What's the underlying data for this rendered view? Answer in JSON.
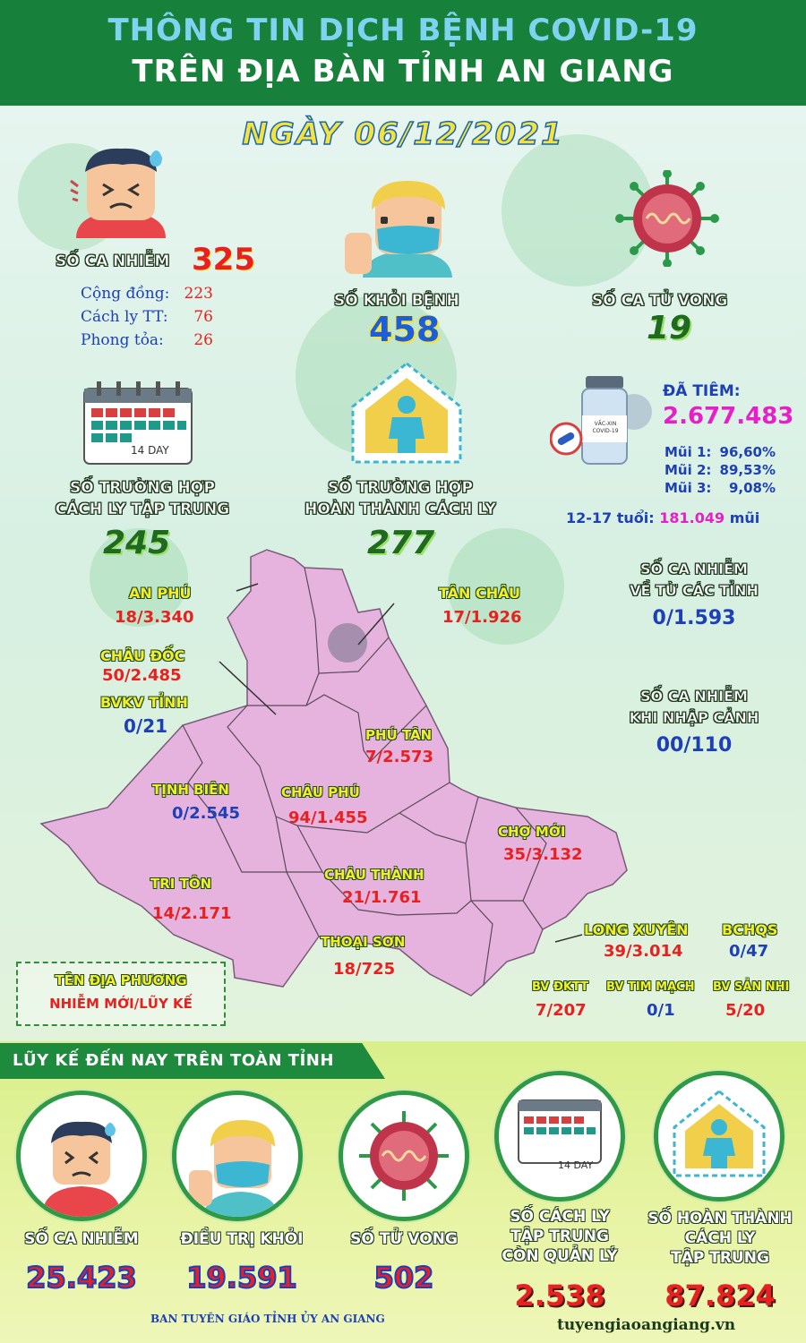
{
  "header": {
    "title_line1": "THÔNG TIN DỊCH BỆNH COVID-19",
    "title_line2": "TRÊN ĐỊA BÀN TỈNH AN GIANG"
  },
  "date": "NGÀY 06/12/2021",
  "infections": {
    "label": "SỐ CA NHIỄM",
    "value": "325",
    "rows": [
      {
        "label": "Cộng đồng:",
        "value": "223"
      },
      {
        "label": "Cách ly TT:",
        "value": "76"
      },
      {
        "label": "Phong tỏa:",
        "value": "26"
      }
    ]
  },
  "recovered": {
    "label": "SỐ KHỎI BỆNH",
    "value": "458"
  },
  "deaths": {
    "label": "SỐ CA TỬ VONG",
    "value": "19"
  },
  "quarantine_central": {
    "label_line1": "SỐ TRƯỜNG HỢP",
    "label_line2": "CÁCH LY TẬP TRUNG",
    "value": "245",
    "calendar_text": "14 DAY"
  },
  "quarantine_completed": {
    "label_line1": "SỐ TRƯỜNG HỢP",
    "label_line2": "HOÀN THÀNH CÁCH LY",
    "value": "277"
  },
  "vaccination": {
    "label": "ĐÃ TIÊM:",
    "value": "2.677.483",
    "vial_text": "VẮC-XIN COVID-19",
    "doses": [
      {
        "label": "Mũi 1:",
        "value": "96,60%"
      },
      {
        "label": "Mũi 2:",
        "value": "89,53%"
      },
      {
        "label": "Mũi 3:",
        "value": "9,08%"
      }
    ],
    "youth_label": "12-17 tuổi:",
    "youth_value": "181.049",
    "youth_unit": "mũi"
  },
  "side_stats": [
    {
      "line1": "SỐ CA NHIỄM",
      "line2": "VỀ TỪ CÁC TỈNH",
      "value": "0/1.593"
    },
    {
      "line1": "SỐ CA NHIỄM",
      "line2": "KHI NHẬP CẢNH",
      "value": "00/110"
    }
  ],
  "districts": [
    {
      "name": "AN PHÚ",
      "value": "18/3.340"
    },
    {
      "name": "TÂN CHÂU",
      "value": "17/1.926"
    },
    {
      "name": "CHÂU ĐỐC",
      "value": "50/2.485"
    },
    {
      "name": "BVKV TỈNH",
      "value": "0/21"
    },
    {
      "name": "PHÚ TÂN",
      "value": "7/2.573"
    },
    {
      "name": "TỊNH BIÊN",
      "value": "0/2.545"
    },
    {
      "name": "CHÂU PHÚ",
      "value": "94/1.455"
    },
    {
      "name": "CHỢ MỚI",
      "value": "35/3.132"
    },
    {
      "name": "TRI TÔN",
      "value": "14/2.171"
    },
    {
      "name": "CHÂU THÀNH",
      "value": "21/1.761"
    },
    {
      "name": "THOẠI SƠN",
      "value": "18/725"
    },
    {
      "name": "LONG XUYÊN",
      "value": "39/3.014"
    },
    {
      "name": "BCHQS",
      "value": "0/47"
    },
    {
      "name": "BV ĐKTT",
      "value": "7/207"
    },
    {
      "name": "BV TIM MẠCH",
      "value": "0/1"
    },
    {
      "name": "BV SẢN NHI",
      "value": "5/20"
    }
  ],
  "legend": {
    "line1": "TÊN ĐỊA PHƯƠNG",
    "line2": "NHIỄM MỚI/LŨY KẾ"
  },
  "cumulative": {
    "title": "LŨY KẾ ĐẾN NAY TRÊN TOÀN TỈNH",
    "items": [
      {
        "label": "SỐ CA NHIỄM",
        "value": "25.423"
      },
      {
        "label": "ĐIỀU TRỊ KHỎI",
        "value": "19.591"
      },
      {
        "label": "SỐ TỬ VONG",
        "value": "502"
      },
      {
        "label_line1": "SỐ CÁCH LY",
        "label_line2": "TẬP TRUNG",
        "label_line3": "CÒN QUẢN LÝ",
        "value": "2.538"
      },
      {
        "label_line1": "SỐ HOÀN THÀNH",
        "label_line2": "CÁCH LY",
        "label_line3": "TẬP TRUNG",
        "value": "87.824"
      }
    ]
  },
  "footer": {
    "left": "BAN TUYÊN GIÁO TỈNH ỦY AN GIANG",
    "right": "tuyengiaoangiang.vn"
  },
  "colors": {
    "header_green": "#17803b",
    "red": "#e8201f",
    "blue": "#1d3fb8",
    "magenta": "#e61fc8",
    "map_pink": "#e6b3df"
  },
  "icons": [
    "sick-person-icon",
    "masked-person-icon",
    "virus-icon",
    "calendar-icon",
    "quarantine-house-icon",
    "vaccine-vial-icon"
  ]
}
